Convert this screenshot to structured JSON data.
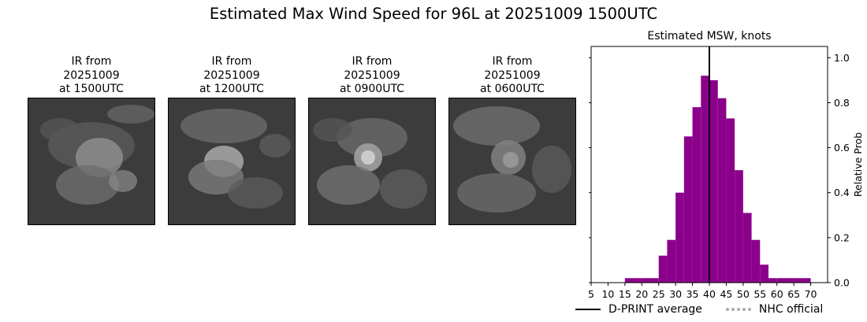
{
  "suptitle": "Estimated Max Wind Speed for 96L at 20251009 1500UTC",
  "panels": [
    {
      "line1": "IR from",
      "line2": "20251009",
      "line3": "at 1500UTC"
    },
    {
      "line1": "IR from",
      "line2": "20251009",
      "line3": "at 1200UTC"
    },
    {
      "line1": "IR from",
      "line2": "20251009",
      "line3": "at 0900UTC"
    },
    {
      "line1": "IR from",
      "line2": "20251009",
      "line3": "at 0600UTC"
    }
  ],
  "legend": {
    "dprint": "D-PRINT average",
    "nhc": "NHC official"
  },
  "chart_data": {
    "type": "bar",
    "title": "Estimated MSW, knots",
    "xlabel": "",
    "ylabel": "Relative Prob",
    "xlim": [
      5,
      75
    ],
    "ylim": [
      0,
      1.05
    ],
    "xticks": [
      5,
      10,
      15,
      20,
      25,
      30,
      35,
      40,
      45,
      50,
      55,
      60,
      65,
      70
    ],
    "yticks": [
      0.0,
      0.2,
      0.4,
      0.6,
      0.8,
      1.0
    ],
    "ytick_labels": [
      "0.0",
      "0.2",
      "0.4",
      "0.6",
      "0.8",
      "1.0"
    ],
    "bin_width": 2.5,
    "bins": [
      {
        "x": 15,
        "value": 0.02
      },
      {
        "x": 17.5,
        "value": 0.02
      },
      {
        "x": 20,
        "value": 0.02
      },
      {
        "x": 22.5,
        "value": 0.02
      },
      {
        "x": 25,
        "value": 0.12
      },
      {
        "x": 27.5,
        "value": 0.19
      },
      {
        "x": 30,
        "value": 0.4
      },
      {
        "x": 32.5,
        "value": 0.65
      },
      {
        "x": 35,
        "value": 0.78
      },
      {
        "x": 37.5,
        "value": 0.92
      },
      {
        "x": 40,
        "value": 0.9
      },
      {
        "x": 42.5,
        "value": 0.82
      },
      {
        "x": 45,
        "value": 0.73
      },
      {
        "x": 47.5,
        "value": 0.5
      },
      {
        "x": 50,
        "value": 0.31
      },
      {
        "x": 52.5,
        "value": 0.19
      },
      {
        "x": 55,
        "value": 0.08
      },
      {
        "x": 57.5,
        "value": 0.02
      },
      {
        "x": 60,
        "value": 0.02
      },
      {
        "x": 62.5,
        "value": 0.02
      },
      {
        "x": 65,
        "value": 0.02
      },
      {
        "x": 67.5,
        "value": 0.02
      }
    ],
    "bar_color": "#8b008b",
    "dprint_average": 40,
    "grid": false,
    "legend_position": "bottom"
  }
}
